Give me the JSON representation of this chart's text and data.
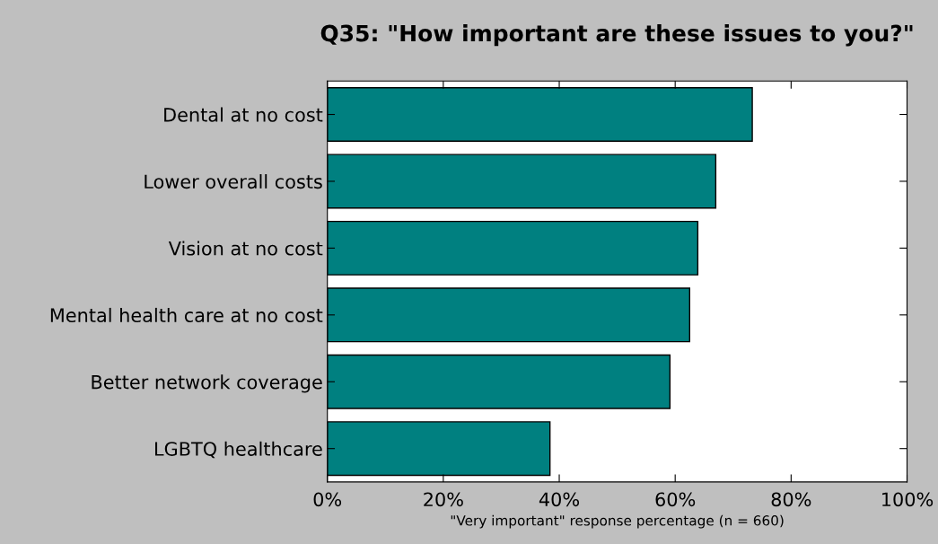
{
  "chart_data": {
    "type": "bar",
    "orientation": "horizontal",
    "title": "Q35: \"How important are these issues to you?\"",
    "xlabel": "\"Very important\" response percentage (n = 660)",
    "categories": [
      "Dental at no cost",
      "Lower overall costs",
      "Vision at no cost",
      "Mental health care at no cost",
      "Better network coverage",
      "LGBTQ healthcare"
    ],
    "values": [
      73.3,
      67.0,
      63.9,
      62.5,
      59.1,
      38.4
    ],
    "color": "#008080",
    "xlim": [
      0,
      100
    ],
    "xticks": [
      {
        "value": 0,
        "label": "0%"
      },
      {
        "value": 20,
        "label": "20%"
      },
      {
        "value": 40,
        "label": "40%"
      },
      {
        "value": 60,
        "label": "60%"
      },
      {
        "value": 80,
        "label": "80%"
      },
      {
        "value": 100,
        "label": "100%"
      }
    ],
    "grid": false,
    "legend": false
  }
}
